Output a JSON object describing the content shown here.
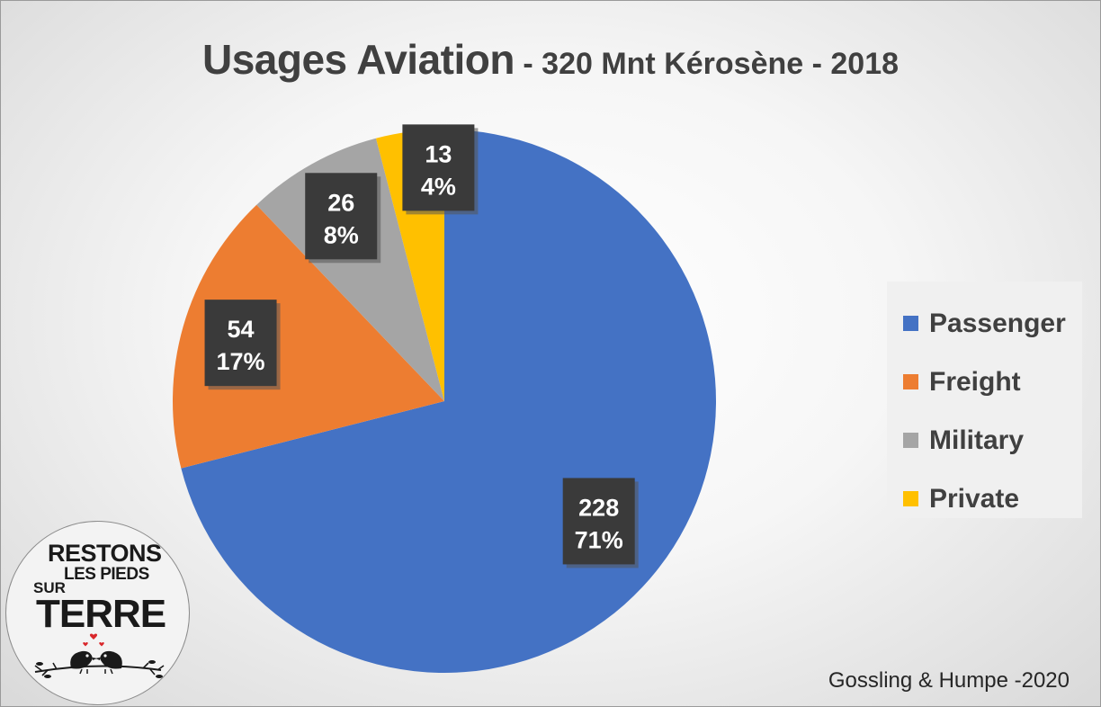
{
  "title": {
    "main": "Usages Aviation",
    "separator": " - ",
    "subtitle": "320 Mnt Kérosène - 2018"
  },
  "source": "Gossling & Humpe -2020",
  "logo": {
    "line1": "RESTONS",
    "line2": "LES PIEDS",
    "line3": "SUR",
    "line4": "TERRE"
  },
  "chart_data": {
    "type": "pie",
    "title": "Usages Aviation - 320 Mnt Kérosène - 2018",
    "categories": [
      "Passenger",
      "Freight",
      "Military",
      "Private"
    ],
    "values": [
      228,
      54,
      26,
      13
    ],
    "percent_labels": [
      "71%",
      "17%",
      "8%",
      "4%"
    ],
    "colors": [
      "#4472C4",
      "#ED7D31",
      "#A5A5A5",
      "#FFC000"
    ],
    "start_angle_deg": 0,
    "direction": "clockwise",
    "legend_position": "right",
    "data_label_style": "dark-box"
  }
}
